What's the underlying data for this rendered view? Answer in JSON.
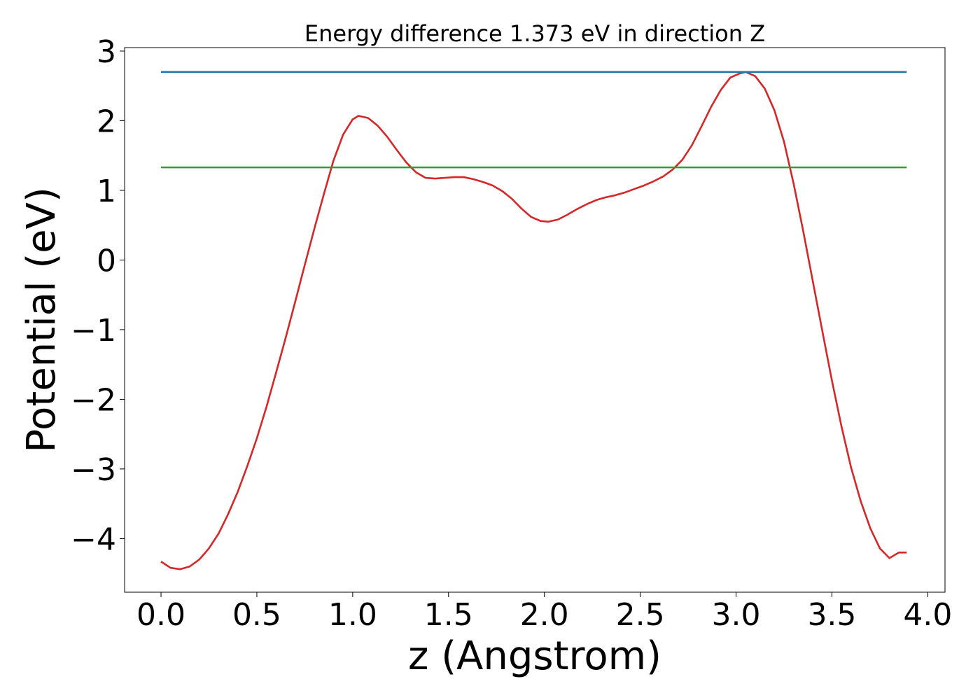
{
  "chart_data": {
    "type": "line",
    "title": "Energy difference 1.373 eV in direction Z",
    "xlabel": "z (Angstrom)",
    "ylabel": "Potential (eV)",
    "xlim": [
      -0.19,
      4.09
    ],
    "ylim": [
      -4.77,
      3.05
    ],
    "xticks": [
      0.0,
      0.5,
      1.0,
      1.5,
      2.0,
      2.5,
      3.0,
      3.5,
      4.0
    ],
    "xtick_labels": [
      "0.0",
      "0.5",
      "1.0",
      "1.5",
      "2.0",
      "2.5",
      "3.0",
      "3.5",
      "4.0"
    ],
    "yticks": [
      -4,
      -3,
      -2,
      -1,
      0,
      1,
      2,
      3
    ],
    "ytick_labels": [
      "−4",
      "−3",
      "−2",
      "−1",
      "0",
      "1",
      "2",
      "3"
    ],
    "grid": false,
    "legend": "none",
    "series": [
      {
        "color": "#d62728",
        "x": [
          0.0,
          0.05,
          0.1,
          0.15,
          0.2,
          0.25,
          0.3,
          0.35,
          0.4,
          0.45,
          0.5,
          0.55,
          0.6,
          0.65,
          0.7,
          0.75,
          0.8,
          0.85,
          0.9,
          0.95,
          1.0,
          1.03,
          1.08,
          1.13,
          1.18,
          1.23,
          1.28,
          1.33,
          1.38,
          1.43,
          1.48,
          1.53,
          1.58,
          1.63,
          1.68,
          1.73,
          1.78,
          1.83,
          1.88,
          1.93,
          1.98,
          2.02,
          2.07,
          2.12,
          2.17,
          2.22,
          2.27,
          2.32,
          2.37,
          2.42,
          2.47,
          2.52,
          2.57,
          2.62,
          2.67,
          2.72,
          2.77,
          2.82,
          2.87,
          2.92,
          2.97,
          3.02,
          3.05,
          3.1,
          3.15,
          3.2,
          3.25,
          3.3,
          3.35,
          3.4,
          3.45,
          3.5,
          3.55,
          3.6,
          3.65,
          3.7,
          3.75,
          3.8,
          3.85,
          3.89
        ],
        "y": [
          -4.33,
          -4.42,
          -4.44,
          -4.4,
          -4.3,
          -4.14,
          -3.93,
          -3.65,
          -3.33,
          -2.96,
          -2.56,
          -2.11,
          -1.62,
          -1.12,
          -0.6,
          -0.07,
          0.45,
          0.95,
          1.43,
          1.8,
          2.02,
          2.07,
          2.04,
          1.93,
          1.77,
          1.58,
          1.4,
          1.26,
          1.18,
          1.17,
          1.18,
          1.19,
          1.19,
          1.16,
          1.12,
          1.07,
          0.99,
          0.88,
          0.74,
          0.62,
          0.56,
          0.55,
          0.58,
          0.65,
          0.73,
          0.8,
          0.86,
          0.9,
          0.93,
          0.97,
          1.02,
          1.07,
          1.13,
          1.2,
          1.3,
          1.44,
          1.65,
          1.92,
          2.2,
          2.44,
          2.62,
          2.68,
          2.7,
          2.64,
          2.46,
          2.15,
          1.7,
          1.1,
          0.42,
          -0.3,
          -1.02,
          -1.73,
          -2.39,
          -2.98,
          -3.46,
          -3.85,
          -4.14,
          -4.28,
          -4.2,
          -4.2
        ]
      },
      {
        "color": "#1f77b4",
        "x": [
          0.0,
          3.89
        ],
        "y": [
          2.7,
          2.7
        ]
      },
      {
        "color": "#2ca02c",
        "x": [
          0.0,
          3.89
        ],
        "y": [
          1.33,
          1.33
        ]
      }
    ]
  }
}
